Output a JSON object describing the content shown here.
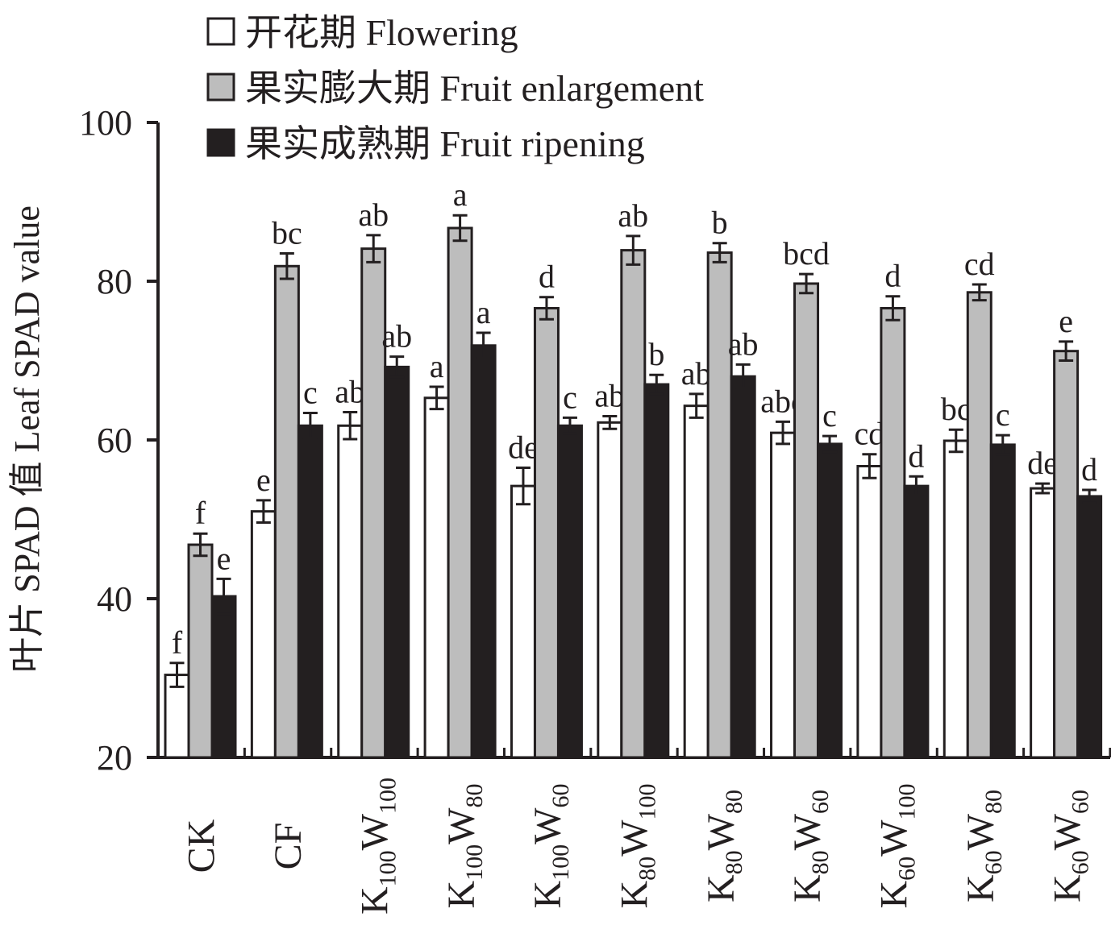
{
  "chart_data": {
    "type": "bar",
    "ylabel": "叶片 SPAD 值 Leaf SPAD value",
    "xlabel": "",
    "ylim": [
      20,
      100
    ],
    "yticks": [
      "20",
      "40",
      "60",
      "80",
      "100"
    ],
    "legend_position": "top-left",
    "categories": [
      {
        "main": [
          "CK"
        ],
        "sub": []
      },
      {
        "main": [
          "CF"
        ],
        "sub": []
      },
      {
        "main": [
          "K",
          "W"
        ],
        "sub": [
          "100",
          "100"
        ]
      },
      {
        "main": [
          "K",
          "W"
        ],
        "sub": [
          "100",
          "80"
        ]
      },
      {
        "main": [
          "K",
          "W"
        ],
        "sub": [
          "100",
          "60"
        ]
      },
      {
        "main": [
          "K",
          "W"
        ],
        "sub": [
          "80",
          "100"
        ]
      },
      {
        "main": [
          "K",
          "W"
        ],
        "sub": [
          "80",
          "80"
        ]
      },
      {
        "main": [
          "K",
          "W"
        ],
        "sub": [
          "80",
          "60"
        ]
      },
      {
        "main": [
          "K",
          "W"
        ],
        "sub": [
          "60",
          "100"
        ]
      },
      {
        "main": [
          "K",
          "W"
        ],
        "sub": [
          "60",
          "80"
        ]
      },
      {
        "main": [
          "K",
          "W"
        ],
        "sub": [
          "60",
          "60"
        ]
      }
    ],
    "series": [
      {
        "name": "开花期 Flowering",
        "color": "#ffffff",
        "values": [
          30.4,
          51.0,
          61.8,
          65.3,
          54.2,
          62.2,
          64.3,
          60.9,
          56.7,
          59.9,
          53.9
        ],
        "errors": [
          1.5,
          1.4,
          1.7,
          1.4,
          2.3,
          0.8,
          1.5,
          1.4,
          1.5,
          1.4,
          0.6
        ],
        "labels": [
          "f",
          "e",
          "ab",
          "a",
          "de",
          "ab",
          "ab",
          "abc",
          "cd",
          "bc",
          "de"
        ]
      },
      {
        "name": "果实膨大期 Fruit enlargement",
        "color": "#bdbdbd",
        "values": [
          46.8,
          81.9,
          84.1,
          86.7,
          76.6,
          83.9,
          83.6,
          79.7,
          76.6,
          78.6,
          71.2
        ],
        "errors": [
          1.4,
          1.6,
          1.7,
          1.6,
          1.4,
          1.8,
          1.2,
          1.2,
          1.5,
          1.0,
          1.2
        ],
        "labels": [
          "f",
          "bc",
          "ab",
          "a",
          "d",
          "ab",
          "b",
          "bcd",
          "d",
          "cd",
          "e"
        ]
      },
      {
        "name": "果实成熟期 Fruit ripening",
        "color": "#231f20",
        "values": [
          40.3,
          61.8,
          69.2,
          71.9,
          61.8,
          67.0,
          68.0,
          59.5,
          54.2,
          59.4,
          52.9
        ],
        "errors": [
          2.2,
          1.6,
          1.3,
          1.6,
          1.0,
          1.2,
          1.5,
          1.0,
          1.2,
          1.2,
          0.8
        ],
        "labels": [
          "e",
          "c",
          "ab",
          "a",
          "c",
          "b",
          "ab",
          "c",
          "d",
          "c",
          "d"
        ]
      }
    ]
  }
}
